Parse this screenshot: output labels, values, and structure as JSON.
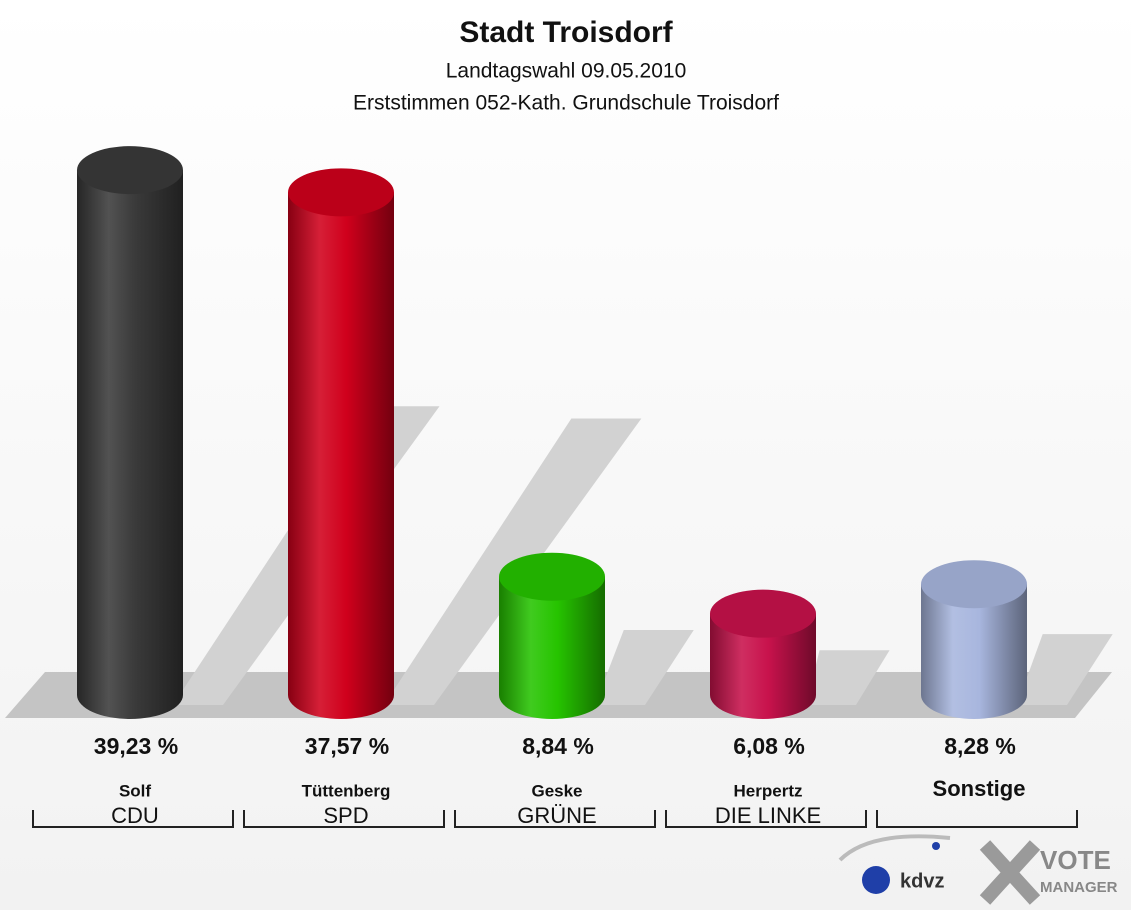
{
  "chart_data": {
    "type": "cylinder-bar",
    "title": "Stadt Troisdorf",
    "subtitle": "Landtagswahl 09.05.2010",
    "subtitle2": "Erststimmen 052-Kath. Grundschule Troisdorf",
    "categories": [
      "CDU",
      "SPD",
      "GRÜNE",
      "DIE LINKE",
      "Sonstige"
    ],
    "candidates": [
      "Solf",
      "Tüttenberg",
      "Geske",
      "Herpertz",
      null
    ],
    "values": [
      39.23,
      37.57,
      8.84,
      6.08,
      8.28
    ],
    "value_labels": [
      "39,23 %",
      "37,57 %",
      "8,84 %",
      "6,08 %",
      "8,28 %"
    ],
    "colors": [
      "#3a3a3a",
      "#d0001c",
      "#26c400",
      "#c8124c",
      "#a8b6de"
    ]
  },
  "logos": {
    "kdvz": "kdvz",
    "vote": "VOTE",
    "manager": "MANAGER"
  }
}
